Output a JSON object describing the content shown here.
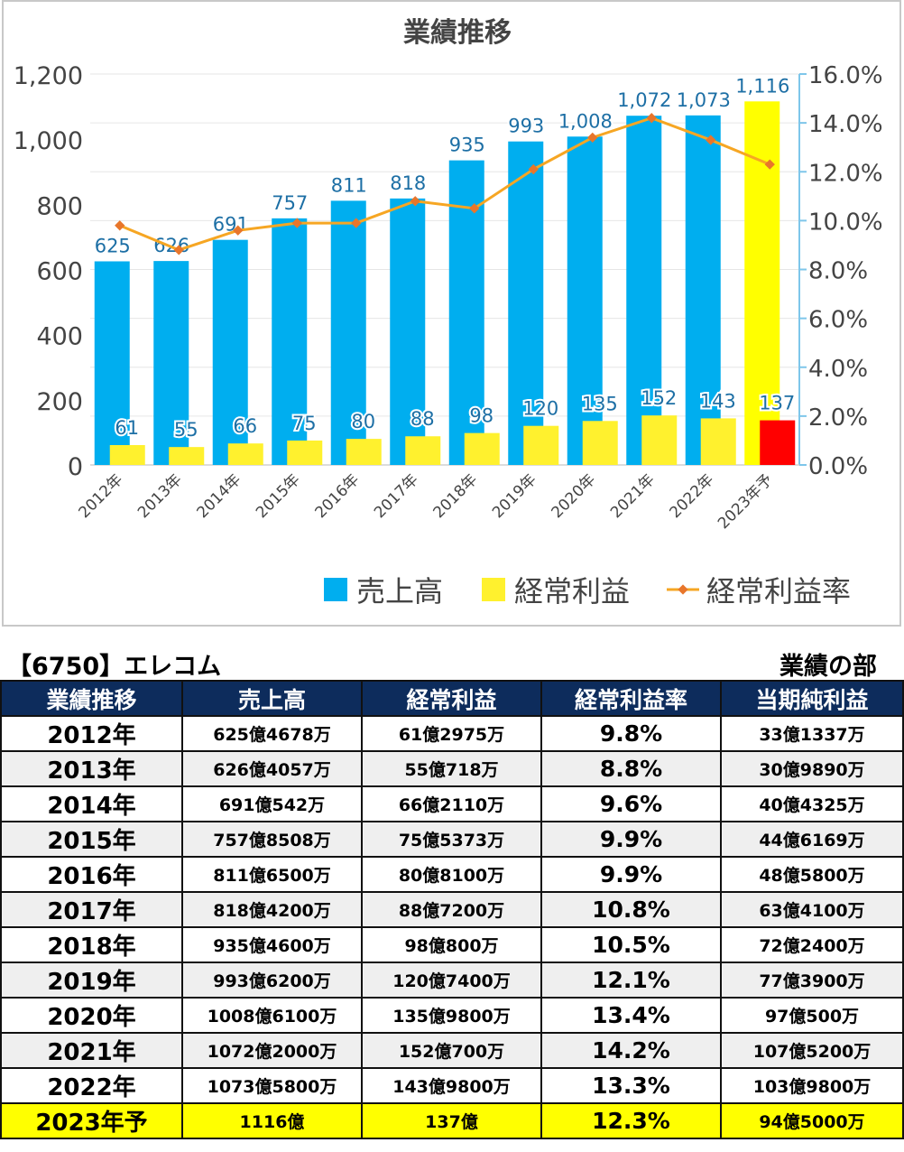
{
  "chart_data": {
    "type": "bar",
    "title": "業績推移",
    "categories": [
      "2012年",
      "2013年",
      "2014年",
      "2015年",
      "2016年",
      "2017年",
      "2018年",
      "2019年",
      "2020年",
      "2021年",
      "2022年",
      "2023年予"
    ],
    "y_left_ticks": [
      "1,200",
      "1,000",
      "800",
      "600",
      "400",
      "200",
      "0"
    ],
    "y_right_ticks": [
      "16.0%",
      "14.0%",
      "12.0%",
      "10.0%",
      "8.0%",
      "6.0%",
      "4.0%",
      "2.0%",
      "0.0%"
    ],
    "ylim": [
      0,
      1200
    ],
    "y2lim": [
      0,
      16
    ],
    "grid": true,
    "legend_position": "bottom",
    "series": [
      {
        "name": "売上高",
        "kind": "bar",
        "color": "#00aeef",
        "values": [
          625,
          626,
          691,
          757,
          811,
          818,
          935,
          993,
          1008,
          1072,
          1073,
          1116
        ],
        "labels": [
          "625",
          "626",
          "691",
          "757",
          "811",
          "818",
          "935",
          "993",
          "1,008",
          "1,072",
          "1,073",
          "1,116"
        ]
      },
      {
        "name": "経常利益",
        "kind": "bar",
        "color": "#fff12e",
        "values": [
          61,
          55,
          66,
          75,
          80,
          88,
          98,
          120,
          135,
          152,
          143,
          137
        ],
        "labels": [
          "61",
          "55",
          "66",
          "75",
          "80",
          "88",
          "98",
          "120",
          "135",
          "152",
          "143",
          "137"
        ]
      },
      {
        "name": "経常利益率",
        "kind": "line",
        "axis": "right",
        "color": "#f6a623",
        "values": [
          9.8,
          8.8,
          9.6,
          9.9,
          9.9,
          10.8,
          10.5,
          12.1,
          13.4,
          14.2,
          13.3,
          12.3
        ]
      }
    ],
    "forecast_colors": {
      "sales": "#ffff00",
      "profit": "#ff0000"
    }
  },
  "header": {
    "company": "【6750】エレコム",
    "section": "業績の部"
  },
  "table": {
    "headers": [
      "業績推移",
      "売上高",
      "経常利益",
      "経常利益率",
      "当期純利益"
    ],
    "rows": [
      [
        "2012年",
        "625億4678万",
        "61億2975万",
        "9.8%",
        "33億1337万"
      ],
      [
        "2013年",
        "626億4057万",
        "55億718万",
        "8.8%",
        "30億9890万"
      ],
      [
        "2014年",
        "691億542万",
        "66億2110万",
        "9.6%",
        "40億4325万"
      ],
      [
        "2015年",
        "757億8508万",
        "75億5373万",
        "9.9%",
        "44億6169万"
      ],
      [
        "2016年",
        "811億6500万",
        "80億8100万",
        "9.9%",
        "48億5800万"
      ],
      [
        "2017年",
        "818億4200万",
        "88億7200万",
        "10.8%",
        "63億4100万"
      ],
      [
        "2018年",
        "935億4600万",
        "98億800万",
        "10.5%",
        "72億2400万"
      ],
      [
        "2019年",
        "993億6200万",
        "120億7400万",
        "12.1%",
        "77億3900万"
      ],
      [
        "2020年",
        "1008億6100万",
        "135億9800万",
        "13.4%",
        "97億500万"
      ],
      [
        "2021年",
        "1072億2000万",
        "152億700万",
        "14.2%",
        "107億5200万"
      ],
      [
        "2022年",
        "1073億5800万",
        "143億9800万",
        "13.3%",
        "103億9800万"
      ],
      [
        "2023年予",
        "1116億",
        "137億",
        "12.3%",
        "94億5000万"
      ]
    ]
  }
}
